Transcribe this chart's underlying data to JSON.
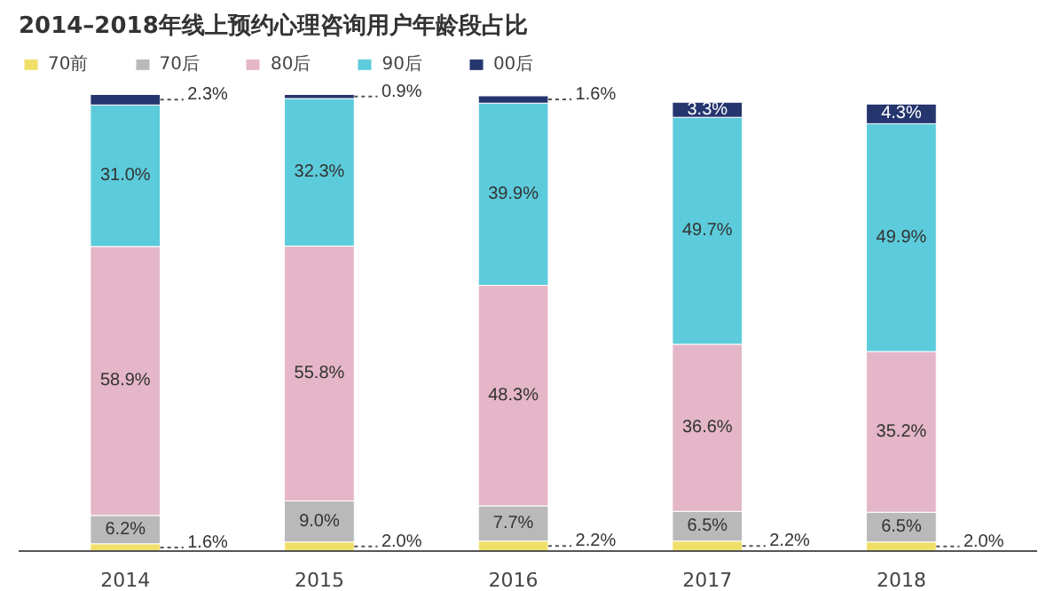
{
  "chart_data": {
    "type": "bar",
    "title": "2014–2018年线上预约心理咨询用户年龄段占比",
    "categories": [
      "2014",
      "2015",
      "2016",
      "2017",
      "2018"
    ],
    "stacked": true,
    "legend": "top left",
    "tick_labels": "x",
    "series": [
      {
        "name": "70前",
        "color": "#f0e06a",
        "values": [
          1.6,
          2.0,
          2.2,
          2.2,
          2.0
        ],
        "value_labels": [
          "1.6%",
          "2.0%",
          "2.2%",
          "2.2%",
          "2.0%"
        ]
      },
      {
        "name": "70后",
        "color": "#b9b9b9",
        "values": [
          6.2,
          9.0,
          7.7,
          6.5,
          6.5
        ],
        "value_labels": [
          "6.2%",
          "9.0%",
          "7.7%",
          "6.5%",
          "6.5%"
        ]
      },
      {
        "name": "80后",
        "color": "#e4b6c8",
        "values": [
          58.9,
          55.8,
          48.3,
          36.6,
          35.2
        ],
        "value_labels": [
          "58.9%",
          "55.8%",
          "48.3%",
          "36.6%",
          "35.2%"
        ]
      },
      {
        "name": "90后",
        "color": "#5ccbdb",
        "values": [
          31.0,
          32.3,
          39.9,
          49.7,
          49.9
        ],
        "value_labels": [
          "31.0%",
          "32.3%",
          "39.9%",
          "49.7%",
          "49.9%"
        ]
      },
      {
        "name": "00后",
        "color": "#25356e",
        "values": [
          2.3,
          0.9,
          1.6,
          3.3,
          4.3
        ],
        "value_labels": [
          "2.3%",
          "0.9%",
          "1.6%",
          "3.3%",
          "4.3%"
        ]
      }
    ]
  }
}
